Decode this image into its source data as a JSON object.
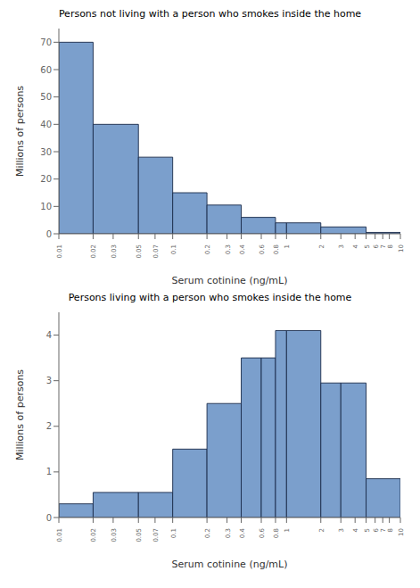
{
  "chart_data": [
    {
      "type": "bar",
      "title": "Persons not living with a person who smokes inside the home",
      "xlabel": "Serum cotinine (ng/mL)",
      "ylabel": "Millions of persons",
      "bins": [
        0.01,
        0.02,
        0.05,
        0.1,
        0.2,
        0.4,
        0.8,
        1,
        2,
        5,
        10
      ],
      "values": [
        70,
        40,
        28,
        15,
        10.5,
        6,
        4,
        4,
        2.5,
        0.5
      ],
      "color": "#7b9fcc",
      "log": "x",
      "grid": false,
      "xlim": [
        0.01,
        10
      ],
      "xticks": [
        0.01,
        0.02,
        0.03,
        0.05,
        0.07,
        0.1,
        0.2,
        0.3,
        0.4,
        0.6,
        0.8,
        1,
        2,
        3,
        4,
        5,
        6,
        7,
        8,
        10
      ],
      "ylim": [
        0,
        75
      ],
      "yticks": [
        0,
        10,
        20,
        30,
        40,
        50,
        60,
        70
      ]
    },
    {
      "type": "bar",
      "title": "Persons living with a person who smokes inside the home",
      "xlabel": "Serum cotinine (ng/mL)",
      "ylabel": "Millions of persons",
      "bins": [
        0.01,
        0.02,
        0.05,
        0.1,
        0.2,
        0.4,
        0.6,
        0.8,
        1,
        2,
        3,
        5,
        10
      ],
      "values": [
        0.3,
        0.55,
        0.55,
        1.5,
        2.5,
        3.5,
        3.5,
        4.1,
        4.1,
        2.95,
        2.95,
        0.85
      ],
      "color": "#7b9fcc",
      "log": "x",
      "grid": false,
      "xlim": [
        0.01,
        10
      ],
      "xticks": [
        0.01,
        0.02,
        0.03,
        0.05,
        0.07,
        0.1,
        0.2,
        0.3,
        0.4,
        0.6,
        0.8,
        1,
        2,
        3,
        4,
        5,
        6,
        7,
        8,
        10
      ],
      "ylim": [
        0,
        4.5
      ],
      "yticks": [
        0,
        1,
        2,
        3,
        4
      ]
    }
  ]
}
